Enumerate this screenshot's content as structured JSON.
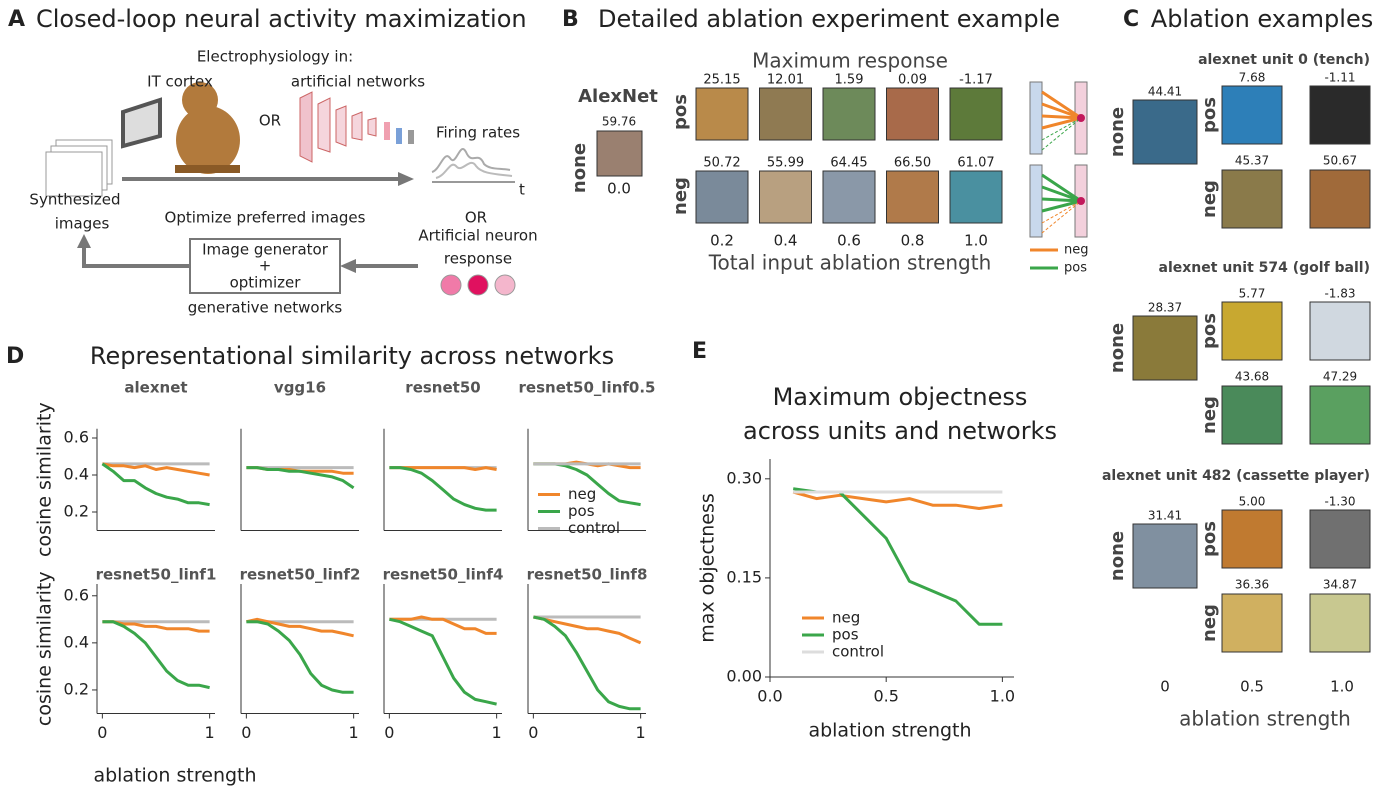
{
  "panel_a": {
    "label": "A",
    "title": "Closed-loop neural activity maximization",
    "ephys": "Electrophysiology in:",
    "it_cortex": "IT cortex",
    "artificial_networks": "artificial networks",
    "or_1": "OR",
    "firing_rates": "Firing rates",
    "time_axis": "t",
    "synthesized_images": [
      "Synthesized",
      "images"
    ],
    "optimize": "Optimize preferred images",
    "or_2": "OR",
    "artificial_neuron_response": [
      "Artificial neuron",
      "response"
    ],
    "generator_box": [
      "Image generator",
      "+",
      "optimizer"
    ],
    "generative_networks": "generative networks"
  },
  "panel_b": {
    "label": "B",
    "title": "Detailed ablation experiment example",
    "subtitle": "Maximum response",
    "network": "AlexNet",
    "none_label": "none",
    "none_value": "59.76",
    "none_strength": "0.0",
    "pos_label": "pos",
    "neg_label": "neg",
    "pos_values": [
      "25.15",
      "12.01",
      "1.59",
      "0.09",
      "-1.17"
    ],
    "neg_values": [
      "50.72",
      "55.99",
      "64.45",
      "66.50",
      "61.07"
    ],
    "strengths": [
      "0.2",
      "0.4",
      "0.6",
      "0.8",
      "1.0"
    ],
    "xlabel": "Total input ablation strength",
    "legend": [
      {
        "name": "neg",
        "color": "#f0862b"
      },
      {
        "name": "pos",
        "color": "#3aa64a"
      }
    ]
  },
  "panel_c": {
    "label": "C",
    "title": "Ablation examples",
    "row_labels": [
      "none",
      "pos",
      "neg"
    ],
    "units": [
      {
        "title": "alexnet unit 0 (tench)",
        "none": "44.41",
        "pos": [
          "7.68",
          "-1.11"
        ],
        "neg": [
          "45.37",
          "50.67"
        ]
      },
      {
        "title": "alexnet unit 574 (golf ball)",
        "none": "28.37",
        "pos": [
          "5.77",
          "-1.83"
        ],
        "neg": [
          "43.68",
          "47.29"
        ]
      },
      {
        "title": "alexnet unit 482 (cassette player)",
        "none": "31.41",
        "pos": [
          "5.00",
          "-1.30"
        ],
        "neg": [
          "36.36",
          "34.87"
        ]
      }
    ],
    "x_labels": [
      "0",
      "0.5",
      "1.0"
    ],
    "xlabel": "ablation strength"
  },
  "panel_d": {
    "label": "D",
    "title": "Representational similarity across networks"
  },
  "panel_e": {
    "label": "E"
  },
  "chart_data": [
    {
      "type": "line",
      "title": "alexnet",
      "ylabel": "cosine similarity",
      "x": [
        0,
        0.1,
        0.2,
        0.3,
        0.4,
        0.5,
        0.6,
        0.7,
        0.8,
        0.9,
        1
      ],
      "xlim": [
        -0.05,
        1.05
      ],
      "ylim": [
        0.1,
        0.65
      ],
      "yticks": [
        0.2,
        0.4,
        0.6
      ],
      "series": [
        {
          "color": "#bbbbbb",
          "values": [
            0.46,
            0.46,
            0.46,
            0.46,
            0.46,
            0.46,
            0.46,
            0.46,
            0.46,
            0.46,
            0.46
          ]
        },
        {
          "color": "#f0862b",
          "values": [
            0.46,
            0.45,
            0.45,
            0.44,
            0.45,
            0.43,
            0.44,
            0.43,
            0.42,
            0.41,
            0.4
          ]
        },
        {
          "color": "#3aa64a",
          "values": [
            0.46,
            0.42,
            0.37,
            0.37,
            0.33,
            0.3,
            0.28,
            0.27,
            0.25,
            0.25,
            0.24
          ]
        }
      ]
    },
    {
      "type": "line",
      "title": "vgg16",
      "x": [
        0,
        0.1,
        0.2,
        0.3,
        0.4,
        0.5,
        0.6,
        0.7,
        0.8,
        0.9,
        1
      ],
      "xlim": [
        -0.05,
        1.05
      ],
      "ylim": [
        0.1,
        0.65
      ],
      "series": [
        {
          "color": "#bbbbbb",
          "values": [
            0.44,
            0.44,
            0.44,
            0.44,
            0.44,
            0.44,
            0.44,
            0.44,
            0.44,
            0.44,
            0.44
          ]
        },
        {
          "color": "#f0862b",
          "values": [
            0.44,
            0.44,
            0.43,
            0.43,
            0.43,
            0.42,
            0.42,
            0.42,
            0.42,
            0.41,
            0.41
          ]
        },
        {
          "color": "#3aa64a",
          "values": [
            0.44,
            0.44,
            0.43,
            0.43,
            0.42,
            0.42,
            0.41,
            0.4,
            0.39,
            0.37,
            0.33
          ]
        }
      ]
    },
    {
      "type": "line",
      "title": "resnet50",
      "x": [
        0,
        0.1,
        0.2,
        0.3,
        0.4,
        0.5,
        0.6,
        0.7,
        0.8,
        0.9,
        1
      ],
      "xlim": [
        -0.05,
        1.05
      ],
      "ylim": [
        0.1,
        0.65
      ],
      "series": [
        {
          "color": "#bbbbbb",
          "values": [
            0.44,
            0.44,
            0.44,
            0.44,
            0.44,
            0.44,
            0.44,
            0.44,
            0.44,
            0.44,
            0.44
          ]
        },
        {
          "color": "#f0862b",
          "values": [
            0.44,
            0.44,
            0.44,
            0.44,
            0.44,
            0.44,
            0.44,
            0.44,
            0.43,
            0.44,
            0.43
          ]
        },
        {
          "color": "#3aa64a",
          "values": [
            0.44,
            0.44,
            0.43,
            0.41,
            0.37,
            0.32,
            0.27,
            0.24,
            0.22,
            0.21,
            0.21
          ]
        }
      ]
    },
    {
      "type": "line",
      "title": "resnet50_linf0.5",
      "x": [
        0,
        0.1,
        0.2,
        0.3,
        0.4,
        0.5,
        0.6,
        0.7,
        0.8,
        0.9,
        1
      ],
      "xlim": [
        -0.05,
        1.05
      ],
      "ylim": [
        0.1,
        0.65
      ],
      "legend": "lower right",
      "series": [
        {
          "name": "neg",
          "color": "#f0862b",
          "values": [
            0.46,
            0.46,
            0.46,
            0.46,
            0.47,
            0.46,
            0.45,
            0.46,
            0.45,
            0.44,
            0.44
          ]
        },
        {
          "name": "pos",
          "color": "#3aa64a",
          "values": [
            0.46,
            0.46,
            0.46,
            0.45,
            0.43,
            0.4,
            0.35,
            0.3,
            0.26,
            0.25,
            0.24
          ]
        },
        {
          "name": "control",
          "color": "#bbbbbb",
          "values": [
            0.46,
            0.46,
            0.46,
            0.46,
            0.46,
            0.46,
            0.46,
            0.46,
            0.46,
            0.46,
            0.46
          ]
        }
      ]
    },
    {
      "type": "line",
      "title": "resnet50_linf1",
      "ylabel": "cosine similarity",
      "xlabel": "ablation strength",
      "x": [
        0,
        0.1,
        0.2,
        0.3,
        0.4,
        0.5,
        0.6,
        0.7,
        0.8,
        0.9,
        1
      ],
      "xlim": [
        -0.05,
        1.05
      ],
      "ylim": [
        0.1,
        0.65
      ],
      "yticks": [
        0.2,
        0.4,
        0.6
      ],
      "xticks": [
        0,
        1
      ],
      "series": [
        {
          "color": "#bbbbbb",
          "values": [
            0.49,
            0.49,
            0.49,
            0.49,
            0.49,
            0.49,
            0.49,
            0.49,
            0.49,
            0.49,
            0.49
          ]
        },
        {
          "color": "#f0862b",
          "values": [
            0.49,
            0.49,
            0.48,
            0.48,
            0.47,
            0.47,
            0.46,
            0.46,
            0.46,
            0.45,
            0.45
          ]
        },
        {
          "color": "#3aa64a",
          "values": [
            0.49,
            0.49,
            0.47,
            0.44,
            0.4,
            0.34,
            0.28,
            0.24,
            0.22,
            0.22,
            0.21
          ]
        }
      ]
    },
    {
      "type": "line",
      "title": "resnet50_linf2",
      "x": [
        0,
        0.1,
        0.2,
        0.3,
        0.4,
        0.5,
        0.6,
        0.7,
        0.8,
        0.9,
        1
      ],
      "xlim": [
        -0.05,
        1.05
      ],
      "ylim": [
        0.1,
        0.65
      ],
      "xticks": [
        0,
        1
      ],
      "series": [
        {
          "color": "#bbbbbb",
          "values": [
            0.49,
            0.49,
            0.49,
            0.49,
            0.49,
            0.49,
            0.49,
            0.49,
            0.49,
            0.49,
            0.49
          ]
        },
        {
          "color": "#f0862b",
          "values": [
            0.49,
            0.5,
            0.49,
            0.48,
            0.47,
            0.47,
            0.46,
            0.45,
            0.45,
            0.44,
            0.43
          ]
        },
        {
          "color": "#3aa64a",
          "values": [
            0.49,
            0.49,
            0.48,
            0.45,
            0.41,
            0.35,
            0.27,
            0.22,
            0.2,
            0.19,
            0.19
          ]
        }
      ]
    },
    {
      "type": "line",
      "title": "resnet50_linf4",
      "x": [
        0,
        0.1,
        0.2,
        0.3,
        0.4,
        0.5,
        0.6,
        0.7,
        0.8,
        0.9,
        1
      ],
      "xlim": [
        -0.05,
        1.05
      ],
      "ylim": [
        0.1,
        0.65
      ],
      "xticks": [
        0,
        1
      ],
      "series": [
        {
          "color": "#bbbbbb",
          "values": [
            0.5,
            0.5,
            0.5,
            0.5,
            0.5,
            0.5,
            0.5,
            0.5,
            0.5,
            0.5,
            0.5
          ]
        },
        {
          "color": "#f0862b",
          "values": [
            0.5,
            0.5,
            0.5,
            0.51,
            0.5,
            0.5,
            0.48,
            0.46,
            0.46,
            0.44,
            0.44
          ]
        },
        {
          "color": "#3aa64a",
          "values": [
            0.5,
            0.49,
            0.47,
            0.45,
            0.43,
            0.34,
            0.25,
            0.19,
            0.16,
            0.15,
            0.14
          ]
        }
      ]
    },
    {
      "type": "line",
      "title": "resnet50_linf8",
      "x": [
        0,
        0.1,
        0.2,
        0.3,
        0.4,
        0.5,
        0.6,
        0.7,
        0.8,
        0.9,
        1
      ],
      "xlim": [
        -0.05,
        1.05
      ],
      "ylim": [
        0.1,
        0.65
      ],
      "xticks": [
        0,
        1
      ],
      "series": [
        {
          "color": "#bbbbbb",
          "values": [
            0.51,
            0.51,
            0.51,
            0.51,
            0.51,
            0.51,
            0.51,
            0.51,
            0.51,
            0.51,
            0.51
          ]
        },
        {
          "color": "#f0862b",
          "values": [
            0.51,
            0.5,
            0.49,
            0.48,
            0.47,
            0.46,
            0.46,
            0.45,
            0.44,
            0.42,
            0.4
          ]
        },
        {
          "color": "#3aa64a",
          "values": [
            0.51,
            0.5,
            0.47,
            0.43,
            0.36,
            0.28,
            0.2,
            0.15,
            0.13,
            0.12,
            0.12
          ]
        }
      ]
    },
    {
      "type": "line",
      "title": [
        "Maximum objectness",
        "across units and networks"
      ],
      "ylabel": "max objectness",
      "xlabel": "ablation strength",
      "x": [
        0.1,
        0.2,
        0.3,
        0.4,
        0.5,
        0.6,
        0.7,
        0.8,
        0.9,
        1
      ],
      "xlim": [
        0,
        1.05
      ],
      "ylim": [
        0,
        0.33
      ],
      "xticks": [
        {
          "value": 0,
          "label": "0.0"
        },
        {
          "value": 0.5,
          "label": "0.5"
        },
        {
          "value": 1,
          "label": "1.0"
        }
      ],
      "yticks": [
        {
          "value": 0,
          "label": "0.00"
        },
        {
          "value": 0.15,
          "label": "0.15"
        },
        {
          "value": 0.3,
          "label": "0.30"
        }
      ],
      "legend": "lower left",
      "series": [
        {
          "name": "neg",
          "color": "#f0862b",
          "values": [
            0.28,
            0.27,
            0.275,
            0.27,
            0.265,
            0.27,
            0.26,
            0.26,
            0.255,
            0.26
          ]
        },
        {
          "name": "pos",
          "color": "#3aa64a",
          "values": [
            0.285,
            0.28,
            0.28,
            0.245,
            0.21,
            0.145,
            0.13,
            0.115,
            0.08,
            0.08
          ]
        },
        {
          "name": "control",
          "color": "#dddddd",
          "values": [
            0.28,
            0.28,
            0.28,
            0.28,
            0.28,
            0.28,
            0.28,
            0.28,
            0.28,
            0.28
          ]
        }
      ]
    }
  ]
}
